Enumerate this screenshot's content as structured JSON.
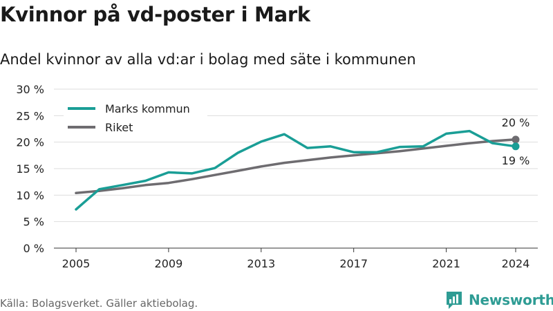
{
  "title": "Kvinnor på vd-poster i Mark",
  "subtitle": "Andel kvinnor av alla vd:ar i bolag med säte i kommunen",
  "footer": {
    "source": "Källa: Bolagsverket. Gäller aktiebolag.",
    "brand": "Newsworthy"
  },
  "colors": {
    "teal": "#1a9e96",
    "gray": "#6e6c70",
    "grid": "#dddddd",
    "axis": "#333333",
    "brand": "#2e9c94"
  },
  "chart_data": {
    "type": "line",
    "title": "",
    "xlabel": "",
    "ylabel": "",
    "xlim": [
      2005,
      2024
    ],
    "ylim": [
      0,
      30
    ],
    "x_ticks": [
      2005,
      2009,
      2013,
      2017,
      2021,
      2024
    ],
    "x_tick_labels": [
      "2005",
      "2009",
      "2013",
      "2017",
      "2021",
      "2024"
    ],
    "y_ticks": [
      0,
      5,
      10,
      15,
      20,
      25,
      30
    ],
    "y_tick_labels": [
      "0 %",
      "5 %",
      "10 %",
      "15 %",
      "20 %",
      "25 %",
      "30 %"
    ],
    "grid": true,
    "legend_position": "top-left",
    "x": [
      2005,
      2006,
      2007,
      2008,
      2009,
      2010,
      2011,
      2012,
      2013,
      2014,
      2015,
      2016,
      2017,
      2018,
      2019,
      2020,
      2021,
      2022,
      2023,
      2024
    ],
    "series": [
      {
        "name": "Marks kommun",
        "color": "#1a9e96",
        "values": [
          7.3,
          11.1,
          11.9,
          12.7,
          14.3,
          14.1,
          15.1,
          18.0,
          20.1,
          21.5,
          18.9,
          19.2,
          18.1,
          18.1,
          19.1,
          19.2,
          21.6,
          22.1,
          19.8,
          19.2
        ],
        "end_label": "19 %"
      },
      {
        "name": "Riket",
        "color": "#6e6c70",
        "values": [
          10.4,
          10.8,
          11.3,
          11.9,
          12.3,
          13.0,
          13.8,
          14.6,
          15.4,
          16.1,
          16.6,
          17.1,
          17.5,
          17.9,
          18.3,
          18.8,
          19.3,
          19.8,
          20.2,
          20.5
        ],
        "end_label": "20 %"
      }
    ]
  }
}
